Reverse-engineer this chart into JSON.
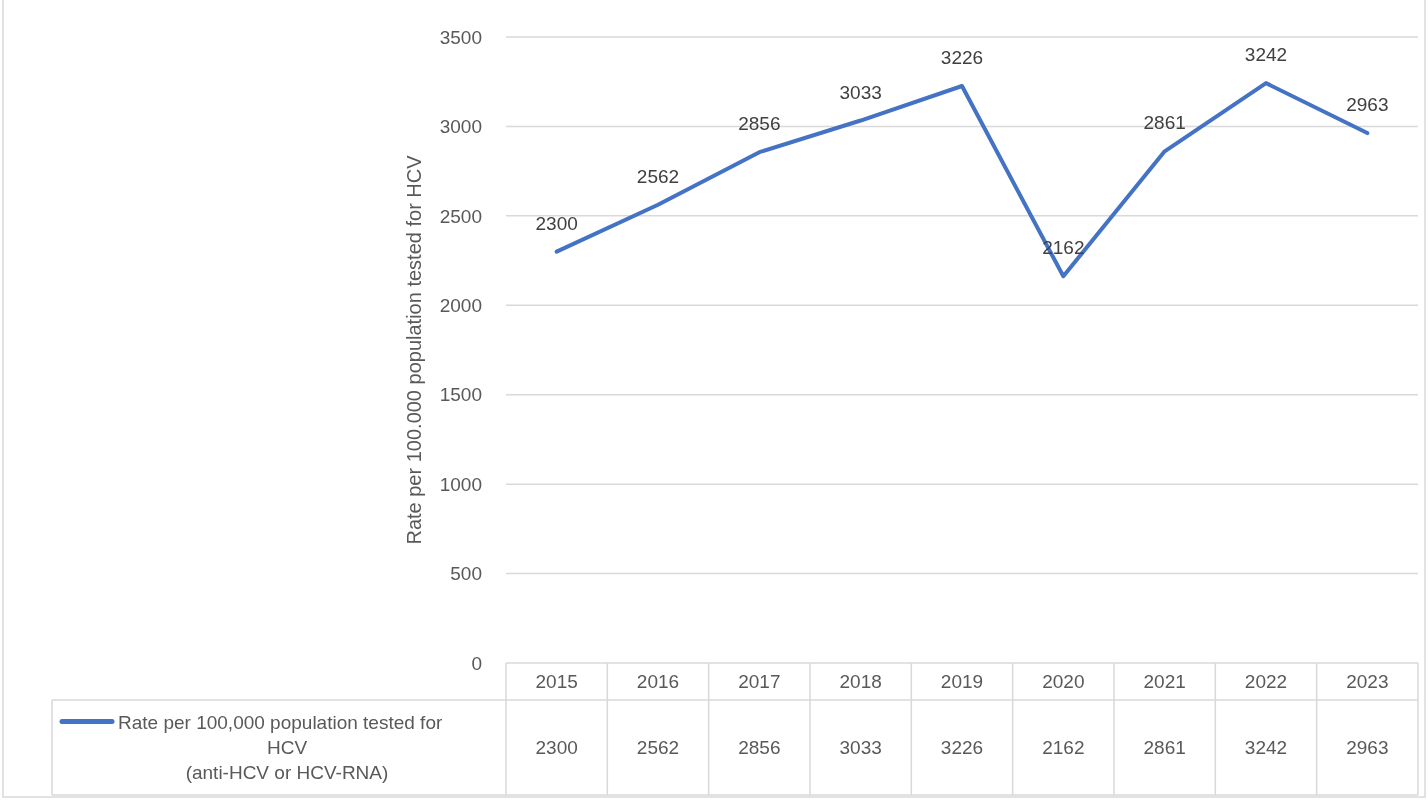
{
  "chart_data": {
    "type": "line",
    "ylabel": "Rate per 100.000 population tested for HCV",
    "categories": [
      "2015",
      "2016",
      "2017",
      "2018",
      "2019",
      "2020",
      "2021",
      "2022",
      "2023"
    ],
    "series": [
      {
        "name": "Rate per 100,000 population tested for HCV\n(anti-HCV or HCV-RNA)",
        "color": "#4472c4",
        "values": [
          2300,
          2562,
          2856,
          3033,
          3226,
          2162,
          2861,
          3242,
          2963
        ]
      }
    ],
    "annotations": [
      "2300",
      "2562",
      "2856",
      "3033",
      "3226",
      "2162",
      "2861",
      "3242",
      "2963"
    ],
    "ylim": [
      0,
      3500
    ],
    "yticks": [
      0,
      500,
      1000,
      1500,
      2000,
      2500,
      3000,
      3500
    ],
    "grid": "y",
    "legend": "bottom",
    "data_labels": true,
    "marker": "none",
    "line_style": "solid"
  }
}
